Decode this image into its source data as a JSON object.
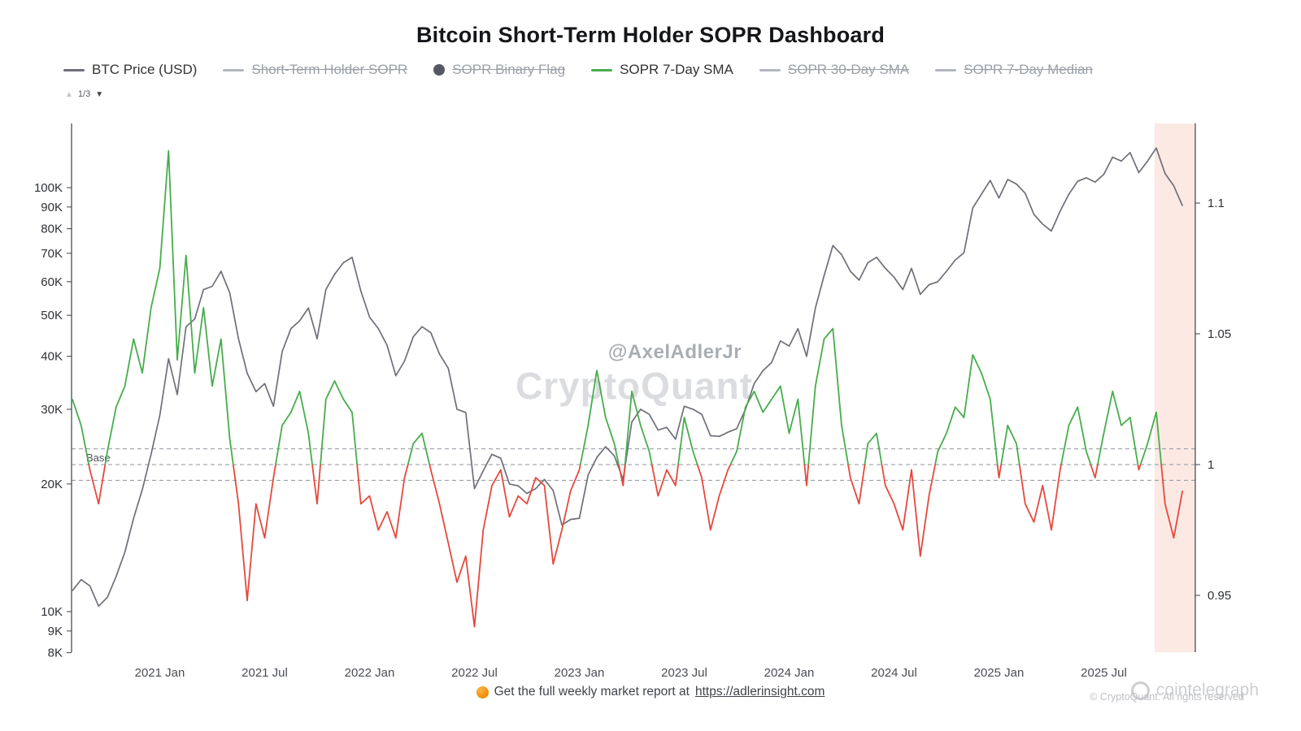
{
  "page": {
    "title": "Bitcoin Short-Term Holder SOPR Dashboard",
    "watermark_handle": "@AxelAdlerJr",
    "watermark_brand": "CryptoQuant",
    "pager": {
      "up": "▲",
      "label": "1/3",
      "down": "▼"
    },
    "footer": {
      "icon": "orange-circle",
      "text": "Get the full weekly market report at",
      "link": "https://adlerinsight.com",
      "copyright": "© CryptoQuant. All rights reserved",
      "cointelegraph": "cointelegraph"
    }
  },
  "legend": [
    {
      "label": "BTC Price (USD)",
      "marker": "line",
      "color": "#6e6f7a",
      "active": true
    },
    {
      "label": "Short-Term Holder SOPR",
      "marker": "line",
      "color": "#b2b6bd",
      "active": false
    },
    {
      "label": "SOPR Binary Flag",
      "marker": "circle",
      "color": "#545863",
      "active": false
    },
    {
      "label": "SOPR 7-Day SMA",
      "marker": "line",
      "color": "#47ad4c",
      "active": true
    },
    {
      "label": "SOPR 30-Day SMA",
      "marker": "line",
      "color": "#b2b6bd",
      "active": false
    },
    {
      "label": "SOPR 7-Day Median",
      "marker": "line",
      "color": "#b2b6bd",
      "active": false
    }
  ],
  "chart_data": {
    "type": "line",
    "title": "Bitcoin Short-Term Holder SOPR Dashboard",
    "x_unit": "months since 2020-08",
    "x_start": 0,
    "x_step": 0.5,
    "x_ticks": [
      {
        "month": 5,
        "label": "2021 Jan"
      },
      {
        "month": 11,
        "label": "2021 Jul"
      },
      {
        "month": 17,
        "label": "2022 Jan"
      },
      {
        "month": 23,
        "label": "2022 Jul"
      },
      {
        "month": 29,
        "label": "2023 Jan"
      },
      {
        "month": 35,
        "label": "2023 Jul"
      },
      {
        "month": 41,
        "label": "2024 Jan"
      },
      {
        "month": 47,
        "label": "2024 Jul"
      },
      {
        "month": 53,
        "label": "2025 Jan"
      },
      {
        "month": 59,
        "label": "2025 Jul"
      }
    ],
    "left_axis": {
      "scale": "log",
      "unit": "USD",
      "range_k": [
        8,
        141
      ],
      "ticks": [
        {
          "value_k": 100,
          "label": "100K"
        },
        {
          "value_k": 90,
          "label": "90K"
        },
        {
          "value_k": 80,
          "label": "80K"
        },
        {
          "value_k": 70,
          "label": "70K"
        },
        {
          "value_k": 60,
          "label": "60K"
        },
        {
          "value_k": 50,
          "label": "50K"
        },
        {
          "value_k": 40,
          "label": "40K"
        },
        {
          "value_k": 30,
          "label": "30K"
        },
        {
          "value_k": 20,
          "label": "20K"
        },
        {
          "value_k": 10,
          "label": "10K"
        },
        {
          "value_k": 9,
          "label": "9K"
        },
        {
          "value_k": 8,
          "label": "8K"
        }
      ]
    },
    "right_axis": {
      "scale": "linear",
      "unit": "SOPR",
      "range": [
        0.928,
        1.13
      ],
      "ticks": [
        {
          "value": 1.1,
          "label": "1.1"
        },
        {
          "value": 1.05,
          "label": "1.05"
        },
        {
          "value": 1,
          "label": "1"
        },
        {
          "value": 0.95,
          "label": "0.95"
        }
      ]
    },
    "base_lines": {
      "label": "Base",
      "values": [
        1.006,
        1.0,
        0.994
      ]
    },
    "highlight_region": {
      "from_month": 61.9,
      "to_month": 64.3,
      "color": "#f6b5a4",
      "opacity": 0.3
    },
    "series": [
      {
        "name": "BTC Price (USD)",
        "axis": "left",
        "unit": "K USD",
        "color": "#6e6f7a",
        "values": [
          11.2,
          11.9,
          11.5,
          10.3,
          10.8,
          12.1,
          13.8,
          16.6,
          19.4,
          23.5,
          29.0,
          39.5,
          32.5,
          47.0,
          49.0,
          57.5,
          58.5,
          63.5,
          56.5,
          44.0,
          36.5,
          33.0,
          34.5,
          30.5,
          41.0,
          46.5,
          48.5,
          52.0,
          44.0,
          57.5,
          62.5,
          66.5,
          68.5,
          57.0,
          49.5,
          46.5,
          42.5,
          36.0,
          39.0,
          44.5,
          47.0,
          45.5,
          40.5,
          37.5,
          30.0,
          29.5,
          19.5,
          21.5,
          23.5,
          23.0,
          20.0,
          19.8,
          19.0,
          19.5,
          20.5,
          19.3,
          16.0,
          16.5,
          16.6,
          21.0,
          23.1,
          24.5,
          23.3,
          20.5,
          28.0,
          30.0,
          29.2,
          26.8,
          27.2,
          25.5,
          30.5,
          30.0,
          29.2,
          26.0,
          25.9,
          26.5,
          27.0,
          30.0,
          34.5,
          37.0,
          38.7,
          43.5,
          42.3,
          46.5,
          40.0,
          52.0,
          62.0,
          73.0,
          69.5,
          63.5,
          60.5,
          66.5,
          68.5,
          64.5,
          61.5,
          57.5,
          64.5,
          56.0,
          59.0,
          60.0,
          63.5,
          67.5,
          70.2,
          89.5,
          96.5,
          104.0,
          94.5,
          104.5,
          102.0,
          97.0,
          86.5,
          82.0,
          79.0,
          88.0,
          96.5,
          103.5,
          105.5,
          103.0,
          107.5,
          118.0,
          115.5,
          121.0,
          108.5,
          115.5,
          124.0,
          108.0,
          101.0,
          90.5
        ]
      },
      {
        "name": "SOPR 7-Day SMA",
        "axis": "right",
        "base": 1.0,
        "color_above": "#47ad4c",
        "color_below": "#e5493d",
        "values": [
          1.025,
          1.015,
          0.998,
          0.985,
          1.005,
          1.022,
          1.03,
          1.048,
          1.035,
          1.06,
          1.075,
          1.12,
          1.04,
          1.08,
          1.035,
          1.06,
          1.03,
          1.048,
          1.01,
          0.985,
          0.948,
          0.985,
          0.972,
          0.995,
          1.015,
          1.02,
          1.028,
          1.012,
          0.985,
          1.025,
          1.032,
          1.025,
          1.02,
          0.985,
          0.988,
          0.975,
          0.982,
          0.972,
          0.995,
          1.008,
          1.012,
          0.998,
          0.985,
          0.97,
          0.955,
          0.965,
          0.938,
          0.975,
          0.992,
          0.998,
          0.98,
          0.988,
          0.985,
          0.995,
          0.992,
          0.962,
          0.975,
          0.99,
          0.998,
          1.015,
          1.036,
          1.018,
          1.008,
          0.992,
          1.028,
          1.015,
          1.005,
          0.988,
          0.998,
          0.992,
          1.018,
          1.005,
          0.995,
          0.975,
          0.988,
          0.998,
          1.005,
          1.022,
          1.028,
          1.02,
          1.025,
          1.03,
          1.012,
          1.025,
          0.992,
          1.03,
          1.048,
          1.052,
          1.015,
          0.995,
          0.985,
          1.008,
          1.012,
          0.992,
          0.985,
          0.975,
          0.998,
          0.965,
          0.988,
          1.005,
          1.012,
          1.022,
          1.018,
          1.042,
          1.035,
          1.025,
          0.995,
          1.015,
          1.008,
          0.985,
          0.978,
          0.992,
          0.975,
          0.998,
          1.015,
          1.022,
          1.005,
          0.995,
          1.012,
          1.028,
          1.015,
          1.018,
          0.998,
          1.008,
          1.02,
          0.985,
          0.972,
          0.99
        ]
      }
    ]
  }
}
